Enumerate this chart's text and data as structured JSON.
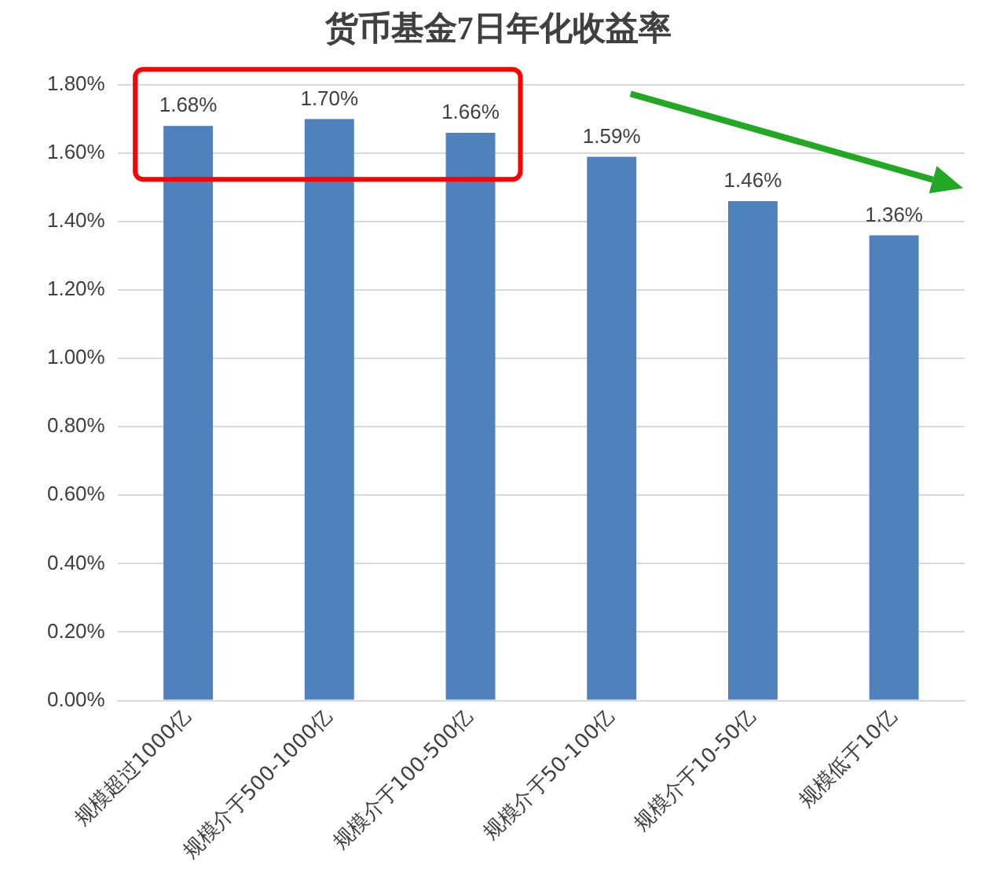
{
  "chart_data": {
    "type": "bar",
    "title": "货币基金7日年化收益率",
    "categories": [
      "规模超过1000亿",
      "规模介于500-1000亿",
      "规模介于100-500亿",
      "规模介于50-100亿",
      "规模介于10-50亿",
      "规模低于10亿"
    ],
    "values": [
      1.68,
      1.7,
      1.66,
      1.59,
      1.46,
      1.36
    ],
    "value_labels": [
      "1.68%",
      "1.70%",
      "1.66%",
      "1.59%",
      "1.46%",
      "1.36%"
    ],
    "color": "#4f81bd",
    "ylim": [
      0,
      1.8
    ],
    "yticks": [
      {
        "value": 0,
        "label": "0.00%"
      },
      {
        "value": 0.2,
        "label": "0.20%"
      },
      {
        "value": 0.4,
        "label": "0.40%"
      },
      {
        "value": 0.6,
        "label": "0.60%"
      },
      {
        "value": 0.8,
        "label": "0.80%"
      },
      {
        "value": 1.0,
        "label": "1.00%"
      },
      {
        "value": 1.2,
        "label": "1.20%"
      },
      {
        "value": 1.4,
        "label": "1.40%"
      },
      {
        "value": 1.6,
        "label": "1.60%"
      },
      {
        "value": 1.8,
        "label": "1.80%"
      }
    ],
    "grid": "y"
  }
}
